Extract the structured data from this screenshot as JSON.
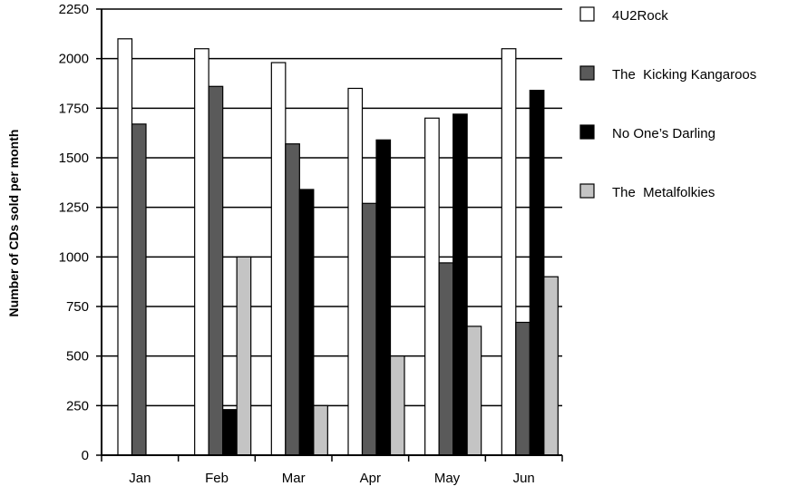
{
  "chart_data": {
    "type": "bar",
    "title": "",
    "xlabel": "",
    "ylabel": "Number of CDs sold per month",
    "ylim": [
      0,
      2250
    ],
    "yticks": [
      0,
      250,
      500,
      750,
      1000,
      1250,
      1500,
      1750,
      2000,
      2250
    ],
    "grid": true,
    "legend_position": "right",
    "categories": [
      "Jan",
      "Feb",
      "Mar",
      "Apr",
      "May",
      "Jun"
    ],
    "series": [
      {
        "name": "4U2Rock",
        "color": "#ffffff",
        "values": [
          2100,
          2050,
          1980,
          1850,
          1700,
          2050
        ]
      },
      {
        "name": "The  Kicking Kangaroos",
        "color": "#5a5a5a",
        "values": [
          1670,
          1860,
          1570,
          1270,
          970,
          670
        ]
      },
      {
        "name": "No One’s Darling",
        "color": "#000000",
        "values": [
          0,
          230,
          1340,
          1590,
          1720,
          1840
        ]
      },
      {
        "name": "The  Metalfolkies",
        "color": "#c4c4c4",
        "values": [
          0,
          1000,
          250,
          500,
          650,
          900
        ]
      }
    ]
  }
}
